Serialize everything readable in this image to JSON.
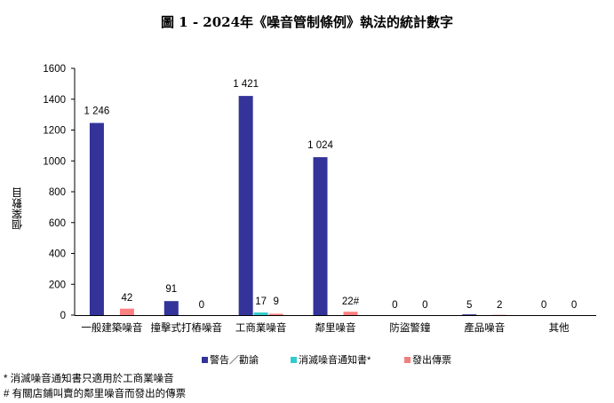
{
  "title": "圖 1 - 2024年《噪音管制條例》執法的統計數字",
  "chart_data": {
    "type": "bar",
    "title": "圖 1 - 2024年《噪音管制條例》執法的統計數字",
    "xlabel": "",
    "ylabel": "個案數目",
    "ylim": [
      0,
      1600
    ],
    "yticks": [
      0,
      200,
      400,
      600,
      800,
      1000,
      1200,
      1400,
      1600
    ],
    "grid": false,
    "legend_position": "bottom",
    "categories": [
      "一般建築噪音",
      "撞擊式打樁噪音",
      "工商業噪音",
      "鄰里噪音",
      "防盜警鐘",
      "產品噪音",
      "其他"
    ],
    "series": [
      {
        "name": "警告／勸諭",
        "color": "#333399",
        "values": [
          1246,
          91,
          1421,
          1024,
          0,
          5,
          0
        ],
        "labels": [
          "1 246",
          "91",
          "1 421",
          "1 024",
          "0",
          "5",
          "0"
        ]
      },
      {
        "name": "消滅噪音通知書*",
        "color": "#33CCCC",
        "values": [
          null,
          null,
          17,
          null,
          null,
          null,
          null
        ],
        "labels": [
          "",
          "",
          "17",
          "",
          "",
          "",
          ""
        ]
      },
      {
        "name": "發出傳票",
        "color": "#FF8080",
        "values": [
          42,
          0,
          9,
          22,
          0,
          2,
          0
        ],
        "labels": [
          "42",
          "0",
          "9",
          "22#",
          "0",
          "2",
          "0"
        ]
      }
    ]
  },
  "legend": [
    {
      "label": "警告／勸諭",
      "color": "#333399"
    },
    {
      "label": "消滅噪音通知書*",
      "color": "#33CCCC"
    },
    {
      "label": "發出傳票",
      "color": "#F08080"
    }
  ],
  "footnotes": {
    "star": "*  消滅噪音通知書只適用於工商業噪音",
    "hash": "#  有關店鋪叫賣的鄰里噪音而發出的傳票"
  }
}
